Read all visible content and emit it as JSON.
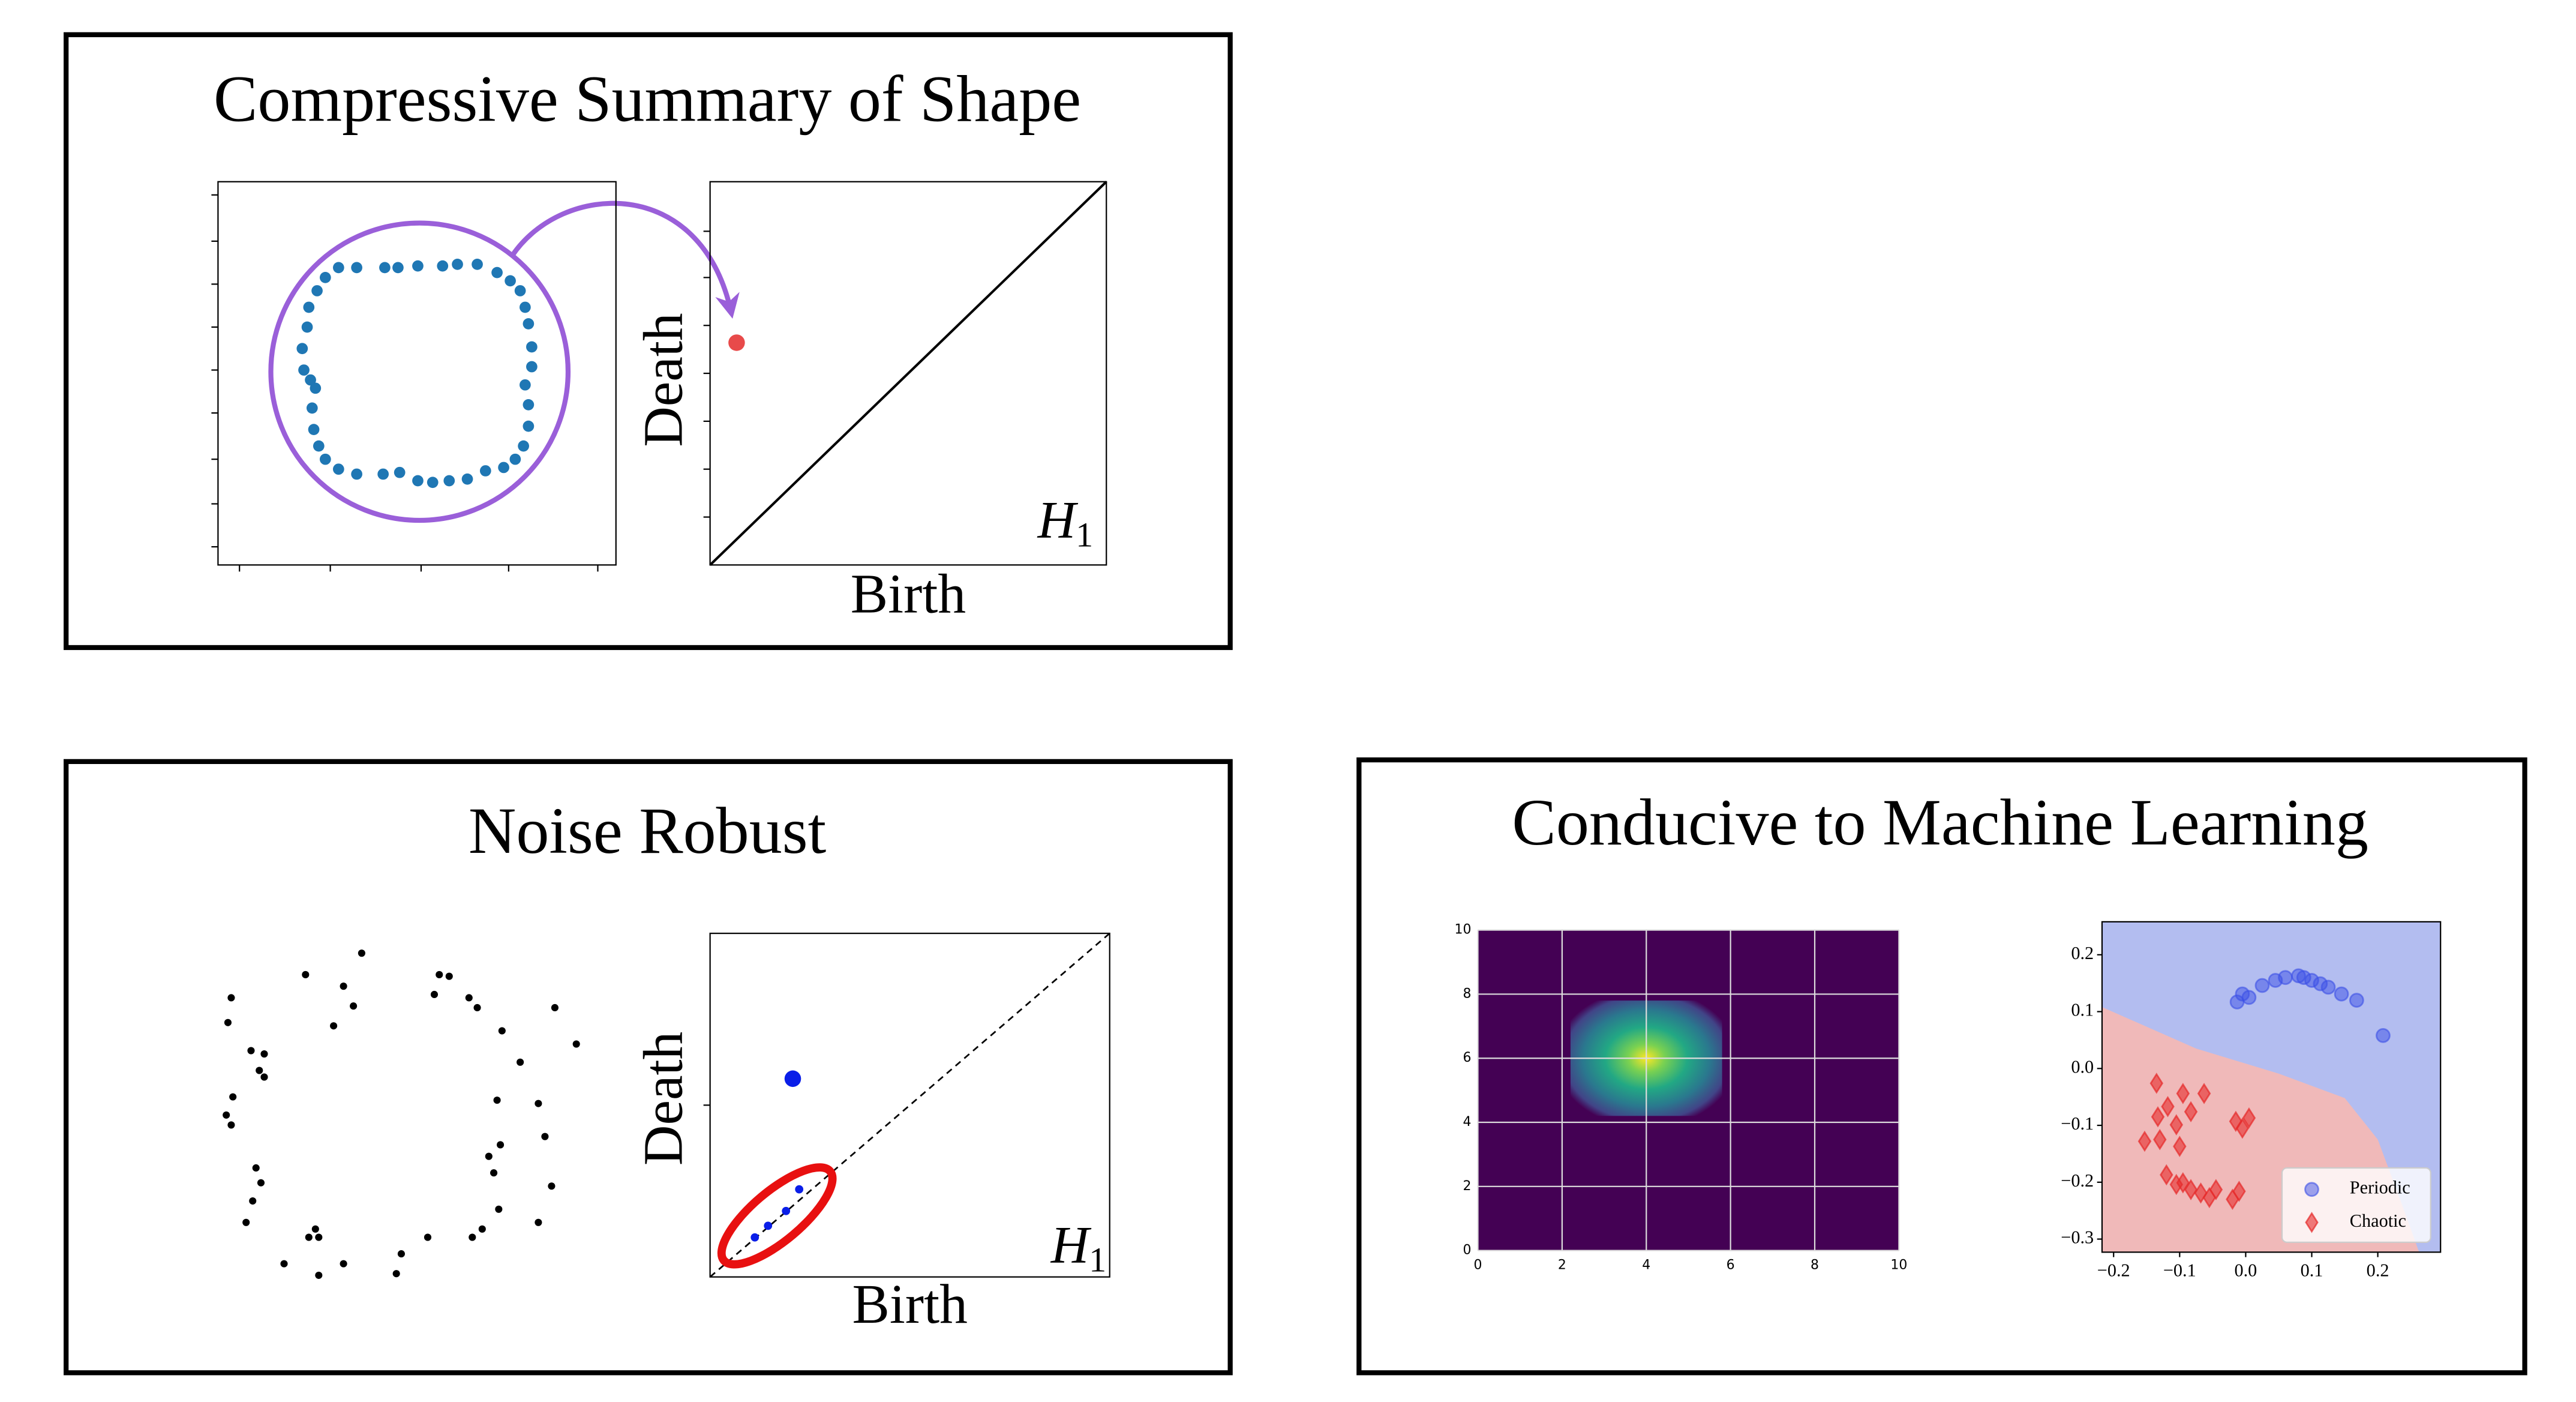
{
  "panels": [
    {
      "title": "Compressive Summary of Shape",
      "point_cloud": {
        "color": "#1f77b4",
        "highlight_color": "#9a5fd9",
        "points": [
          [
            -57,
            57
          ],
          [
            -49,
            63
          ],
          [
            -38,
            63
          ],
          [
            -21,
            63
          ],
          [
            -13,
            63
          ],
          [
            -1,
            64
          ],
          [
            14,
            64
          ],
          [
            23,
            65
          ],
          [
            35,
            65
          ],
          [
            47,
            60
          ],
          [
            55,
            55
          ],
          [
            61,
            49
          ],
          [
            64,
            39
          ],
          [
            66,
            29
          ],
          [
            68,
            15
          ],
          [
            68,
            3
          ],
          [
            64,
            -8
          ],
          [
            66,
            -20
          ],
          [
            66,
            -33
          ],
          [
            63,
            -45
          ],
          [
            58,
            -53
          ],
          [
            51,
            -58
          ],
          [
            40,
            -60
          ],
          [
            29,
            -65
          ],
          [
            18,
            -66
          ],
          [
            8,
            -67
          ],
          [
            -1,
            -66
          ],
          [
            -12,
            -61
          ],
          [
            -22,
            -62
          ],
          [
            -38,
            -62
          ],
          [
            -49,
            -59
          ],
          [
            -57,
            -53
          ],
          [
            -61,
            -45
          ],
          [
            -64,
            -35
          ],
          [
            -65,
            -22
          ],
          [
            -63,
            -10
          ],
          [
            -66,
            -5
          ],
          [
            -70,
            1
          ],
          [
            -71,
            14
          ],
          [
            -68,
            27
          ],
          [
            -67,
            39
          ],
          [
            -62,
            49
          ]
        ]
      },
      "diagram": {
        "x_label": "Birth",
        "y_label": "Death",
        "homology": "H",
        "homology_index": "1",
        "color": "#e84a4a",
        "points": [
          [
            0.067,
            0.58
          ]
        ]
      }
    },
    {
      "title": "Noise Robust",
      "point_cloud": {
        "color": "#000000",
        "points": [
          [
            -26,
            98
          ],
          [
            -60,
            85
          ],
          [
            -37,
            78
          ],
          [
            -31,
            66
          ],
          [
            -43,
            54
          ],
          [
            21,
            85
          ],
          [
            27,
            84
          ],
          [
            39,
            71
          ],
          [
            18,
            73
          ],
          [
            44,
            65
          ],
          [
            -105,
            71
          ],
          [
            -107,
            56
          ],
          [
            -93,
            39
          ],
          [
            -85,
            37
          ],
          [
            -88,
            27
          ],
          [
            -85,
            23
          ],
          [
            91,
            65
          ],
          [
            104,
            43
          ],
          [
            59,
            51
          ],
          [
            70,
            32
          ],
          [
            -104,
            11
          ],
          [
            -108,
            0
          ],
          [
            -105,
            -6
          ],
          [
            56,
            9
          ],
          [
            81,
            7
          ],
          [
            58,
            -18
          ],
          [
            85,
            -13
          ],
          [
            51,
            -25
          ],
          [
            -90,
            -32
          ],
          [
            -87,
            -41
          ],
          [
            54,
            -35
          ],
          [
            -92,
            -52
          ],
          [
            57,
            -57
          ],
          [
            -96,
            -65
          ],
          [
            89,
            -43
          ],
          [
            81,
            -65
          ],
          [
            -54,
            -69
          ],
          [
            -58,
            -74
          ],
          [
            -52,
            -74
          ],
          [
            47,
            -69
          ],
          [
            41,
            -74
          ],
          [
            14,
            -74
          ],
          [
            -2,
            -84
          ],
          [
            -73,
            -90
          ],
          [
            -37,
            -90
          ],
          [
            -5,
            -96
          ],
          [
            -52,
            -97
          ]
        ]
      },
      "diagram": {
        "x_label": "Birth",
        "y_label": "Death",
        "homology": "H",
        "homology_index": "1",
        "color": "#0a1ee8",
        "noise_highlight_color": "#e81010",
        "points": [
          [
            0.207,
            0.577
          ],
          [
            0.112,
            0.115
          ],
          [
            0.145,
            0.149
          ],
          [
            0.19,
            0.192
          ],
          [
            0.223,
            0.255
          ]
        ]
      }
    },
    {
      "title": "Conducive to Machine Learning",
      "image": {
        "xlim": [
          0,
          10
        ],
        "ylim": [
          0,
          10
        ],
        "xticks": [
          0,
          2,
          4,
          6,
          8,
          10
        ],
        "yticks": [
          0,
          2,
          4,
          6,
          8,
          10
        ],
        "background": "#440154",
        "hotspot": {
          "x": 4,
          "y": 6,
          "radius": 1.8
        }
      },
      "classifier": {
        "xlim": [
          -0.2175,
          0.295
        ],
        "ylim": [
          -0.323,
          0.258
        ],
        "xticks": [
          {
            "value": -0.2,
            "label": "−0.2"
          },
          {
            "value": -0.1,
            "label": "−0.1"
          },
          {
            "value": 0,
            "label": "0.0"
          },
          0.1,
          0.2
        ],
        "yticks": [
          0.2,
          0.1,
          {
            "value": 0,
            "label": "0.0"
          },
          {
            "value": -0.1,
            "label": "−0.1"
          },
          {
            "value": -0.2,
            "label": "−0.2"
          },
          {
            "value": -0.3,
            "label": "−0.3"
          }
        ],
        "decision_boundary": [
          [
            -0.2175,
            0.108
          ],
          [
            -0.075,
            0.035
          ],
          [
            0.05,
            -0.009
          ],
          [
            0.15,
            -0.052
          ],
          [
            0.2,
            -0.125
          ],
          [
            0.2375,
            -0.242
          ],
          [
            0.2625,
            -0.323
          ]
        ],
        "series": [
          {
            "name": "Periodic",
            "color": "#3c50e6",
            "region_color": "#b3bdf0",
            "points": [
              [
                -0.013,
                0.117
              ],
              [
                -0.005,
                0.131
              ],
              [
                0.005,
                0.125
              ],
              [
                0.025,
                0.146
              ],
              [
                0.045,
                0.155
              ],
              [
                0.06,
                0.16
              ],
              [
                0.08,
                0.163
              ],
              [
                0.088,
                0.16
              ],
              [
                0.1,
                0.155
              ],
              [
                0.113,
                0.149
              ],
              [
                0.125,
                0.143
              ],
              [
                0.145,
                0.131
              ],
              [
                0.168,
                0.12
              ],
              [
                0.208,
                0.058
              ]
            ]
          },
          {
            "name": "Chaotic",
            "color": "#e62a2a",
            "region_color": "#f0b9b9",
            "points": [
              [
                -0.135,
                -0.026
              ],
              [
                -0.118,
                -0.067
              ],
              [
                -0.095,
                -0.044
              ],
              [
                -0.083,
                -0.076
              ],
              [
                -0.063,
                -0.044
              ],
              [
                -0.133,
                -0.085
              ],
              [
                -0.105,
                -0.099
              ],
              [
                -0.13,
                -0.125
              ],
              [
                -0.1,
                -0.137
              ],
              [
                -0.12,
                -0.187
              ],
              [
                -0.105,
                -0.204
              ],
              [
                -0.095,
                -0.201
              ],
              [
                -0.083,
                -0.213
              ],
              [
                -0.068,
                -0.219
              ],
              [
                -0.055,
                -0.227
              ],
              [
                -0.015,
                -0.093
              ],
              [
                -0.005,
                -0.105
              ],
              [
                0.005,
                -0.087
              ],
              [
                -0.01,
                -0.216
              ],
              [
                -0.02,
                -0.23
              ],
              [
                -0.153,
                -0.128
              ],
              [
                -0.045,
                -0.213
              ]
            ]
          }
        ]
      }
    }
  ]
}
